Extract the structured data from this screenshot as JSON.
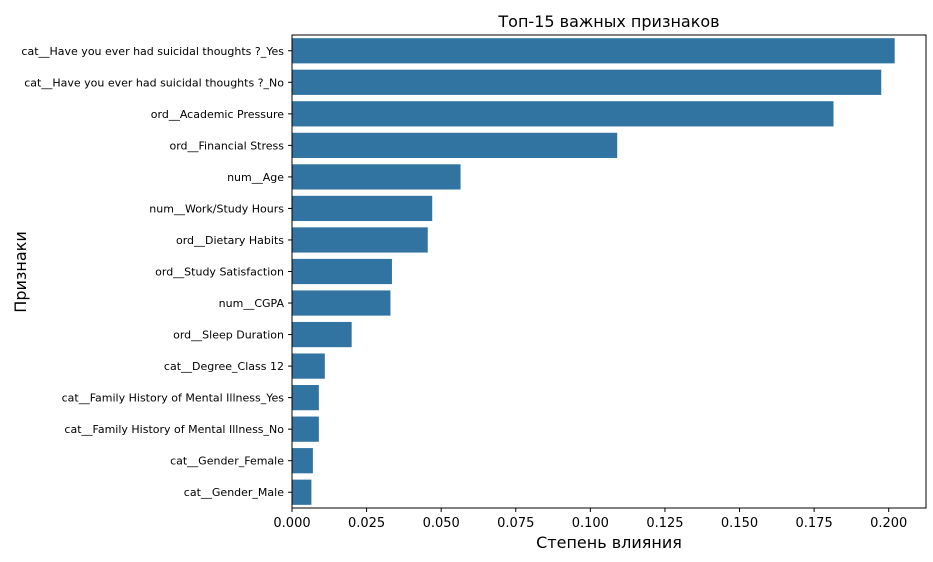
{
  "chart_data": {
    "type": "bar",
    "orientation": "horizontal",
    "title": "Топ-15 важных признаков",
    "xlabel": "Степень влияния",
    "ylabel": "Признаки",
    "xlim": [
      0,
      0.2125
    ],
    "xticks": [
      0.0,
      0.025,
      0.05,
      0.075,
      0.1,
      0.125,
      0.15,
      0.175,
      0.2
    ],
    "xtick_labels": [
      "0.000",
      "0.025",
      "0.050",
      "0.075",
      "0.100",
      "0.125",
      "0.150",
      "0.175",
      "0.200"
    ],
    "grid": false,
    "bar_color": "#3274a1",
    "categories": [
      "cat__Have you ever had suicidal thoughts ?_Yes",
      "cat__Have you ever had suicidal thoughts ?_No",
      "ord__Academic Pressure",
      "ord__Financial Stress",
      "num__Age",
      "num__Work/Study Hours",
      "ord__Dietary Habits",
      "ord__Study Satisfaction",
      "num__CGPA",
      "ord__Sleep Duration",
      "cat__Degree_Class 12",
      "cat__Family History of Mental Illness_Yes",
      "cat__Family History of Mental Illness_No",
      "cat__Gender_Female",
      "cat__Gender_Male"
    ],
    "values": [
      0.202,
      0.1975,
      0.1815,
      0.109,
      0.0565,
      0.047,
      0.0455,
      0.0335,
      0.033,
      0.02,
      0.011,
      0.009,
      0.009,
      0.007,
      0.0065
    ]
  }
}
